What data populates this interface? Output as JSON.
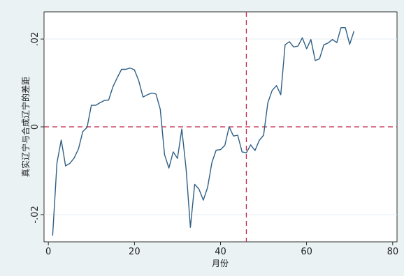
{
  "chart_data": {
    "type": "line",
    "title": "",
    "xlabel": "月份",
    "ylabel": "真实辽宁与合成辽宁的差距",
    "xlim": [
      -1,
      81
    ],
    "ylim": [
      -0.0262,
      0.0262
    ],
    "xticks": [
      0,
      20,
      40,
      60,
      80
    ],
    "xtick_labels": [
      "0",
      "20",
      "40",
      "60",
      "80"
    ],
    "yticks": [
      -0.02,
      0,
      0.02
    ],
    "ytick_labels": [
      "-.02",
      "0",
      ".02"
    ],
    "grid": "horizontal",
    "reference_lines": {
      "horizontal": {
        "y": 0,
        "color": "#c0284b",
        "style": "dashed"
      },
      "vertical": {
        "x": 46,
        "color": "#c0284b",
        "style": "dashed"
      }
    },
    "series": [
      {
        "color": "#2e5f86",
        "x": [
          1,
          2,
          3,
          4,
          5,
          6,
          7,
          8,
          9,
          10,
          11,
          12,
          13,
          14,
          15,
          16,
          17,
          18,
          19,
          20,
          21,
          22,
          23,
          24,
          25,
          26,
          27,
          28,
          29,
          30,
          31,
          32,
          33,
          34,
          35,
          36,
          37,
          38,
          39,
          40,
          41,
          42,
          43,
          44,
          45,
          46,
          47,
          48,
          49,
          50,
          51,
          52,
          53,
          54,
          55,
          56,
          57,
          58,
          59,
          60,
          61,
          62,
          63,
          64,
          65,
          66,
          67,
          68,
          69,
          70,
          71
        ],
        "y": [
          -0.0248,
          -0.0082,
          -0.003,
          -0.0089,
          -0.0083,
          -0.0071,
          -0.005,
          -0.0011,
          -0.0001,
          0.0049,
          0.0049,
          0.0055,
          0.006,
          0.0061,
          0.0091,
          0.0112,
          0.0131,
          0.0131,
          0.0134,
          0.013,
          0.0105,
          0.0068,
          0.0073,
          0.0077,
          0.0075,
          0.004,
          -0.0063,
          -0.0094,
          -0.0057,
          -0.0072,
          -0.0005,
          -0.0095,
          -0.0229,
          -0.0131,
          -0.0142,
          -0.0167,
          -0.0138,
          -0.0081,
          -0.0053,
          -0.0052,
          -0.0042,
          0.0,
          -0.0021,
          -0.0019,
          -0.0057,
          -0.0059,
          -0.0041,
          -0.0054,
          -0.0031,
          -0.0019,
          0.0055,
          0.0083,
          0.0094,
          0.0073,
          0.0187,
          0.0194,
          0.0182,
          0.0184,
          0.0203,
          0.0178,
          0.0199,
          0.0151,
          0.0155,
          0.0187,
          0.0191,
          0.0199,
          0.0192,
          0.0226,
          0.0226,
          0.0188,
          0.0218
        ]
      }
    ]
  }
}
